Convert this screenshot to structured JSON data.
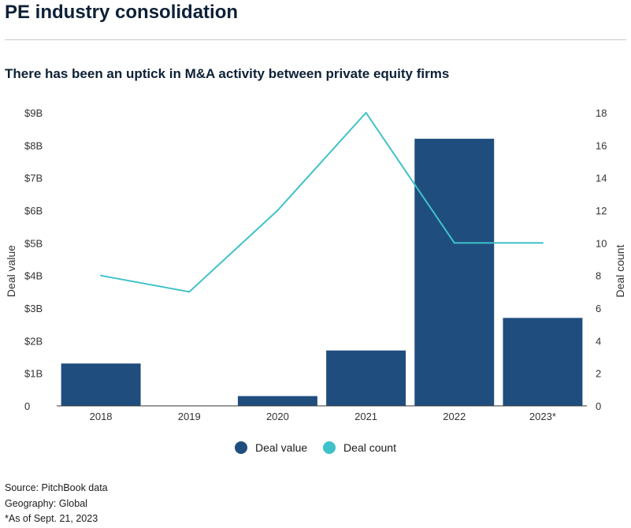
{
  "title": "PE industry consolidation",
  "subtitle": "There has been an uptick in M&A activity between private equity firms",
  "legend": [
    {
      "label": "Deal value",
      "color": "#1f4e7e"
    },
    {
      "label": "Deal count",
      "color": "#3fc1c9"
    }
  ],
  "footer": {
    "source": "Source: PitchBook data",
    "geography": "Geography: Global",
    "asof": "*As of Sept. 21, 2023"
  },
  "chart_data": {
    "type": "bar",
    "categories": [
      "2018",
      "2019",
      "2020",
      "2021",
      "2022",
      "2023*"
    ],
    "series": [
      {
        "name": "Deal value",
        "type": "bar",
        "axis": "left",
        "color": "#1f4e7e",
        "values": [
          1.3,
          0,
          0.3,
          1.7,
          8.2,
          2.7
        ]
      },
      {
        "name": "Deal count",
        "type": "line",
        "axis": "right",
        "color": "#3fc1c9",
        "values": [
          8,
          7,
          12,
          18,
          10,
          10
        ]
      }
    ],
    "left_axis": {
      "label": "Deal value",
      "range": [
        0,
        9
      ],
      "ticks": [
        "0",
        "$1B",
        "$2B",
        "$3B",
        "$4B",
        "$5B",
        "$6B",
        "$7B",
        "$8B",
        "$9B"
      ]
    },
    "right_axis": {
      "label": "Deal count",
      "range": [
        0,
        18
      ],
      "ticks": [
        "0",
        "2",
        "4",
        "6",
        "8",
        "10",
        "12",
        "14",
        "16",
        "18"
      ]
    },
    "grid": false,
    "legend_position": "bottom"
  }
}
